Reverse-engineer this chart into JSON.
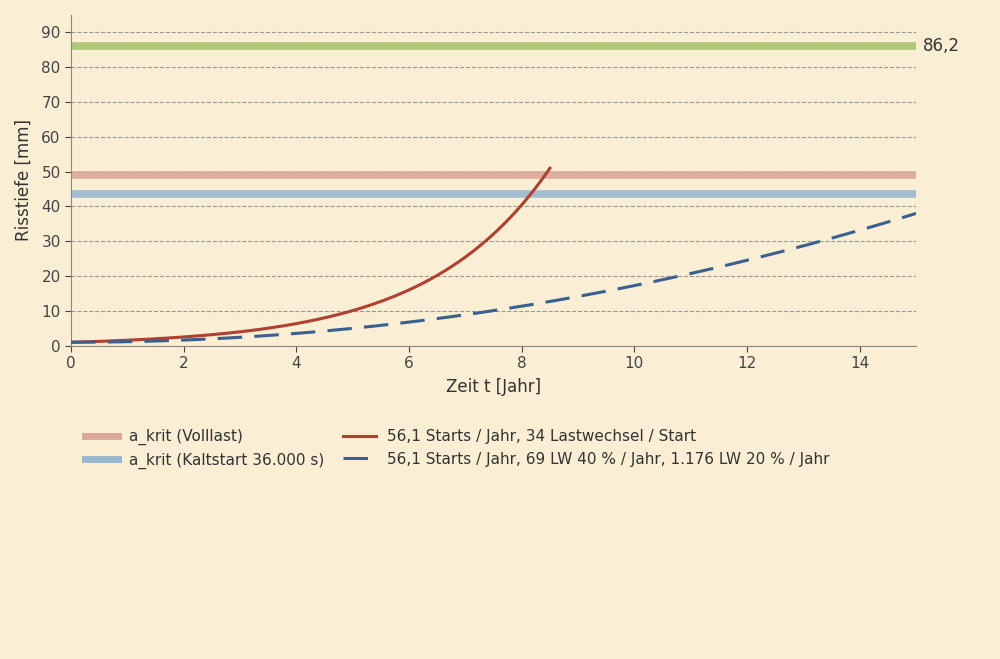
{
  "background_color": "#faefd4",
  "plot_bg_color": "#faefd4",
  "xlabel": "Zeit t [Jahr]",
  "ylabel": "Risstiefe [mm]",
  "xlim": [
    0,
    15
  ],
  "ylim": [
    0,
    95
  ],
  "yticks": [
    0,
    10,
    20,
    30,
    40,
    50,
    60,
    70,
    80,
    90
  ],
  "xticks": [
    0,
    2,
    4,
    6,
    8,
    10,
    12,
    14
  ],
  "grid_color": "#888888",
  "a_krit_volllast_y": 49.0,
  "a_krit_volllast_color": "#daa898",
  "a_krit_volllast_lw": 5.5,
  "a_krit_kaltstart_y": 43.5,
  "a_krit_kaltstart_color": "#9ab8d0",
  "a_krit_kaltstart_lw": 5.5,
  "green_line_y": 86.2,
  "green_line_color": "#b0c878",
  "green_line_lw": 5.5,
  "green_line_label": "86,2",
  "red_curve_color": "#b04030",
  "blue_dash_color": "#3a6090",
  "legend_labels_row1": [
    "a_krit (Volllast)",
    "a_krit (Kaltstart 36.000 s)"
  ],
  "legend_label_red": "56,1 Starts / Jahr, 34 Lastwechsel / Start",
  "legend_label_blue": "56,1 Starts / Jahr, 69 LW 40 % / Jahr, 1.176 LW 20 % / Jahr",
  "tick_color": "#444444",
  "label_color": "#333333",
  "spine_color": "#888888"
}
